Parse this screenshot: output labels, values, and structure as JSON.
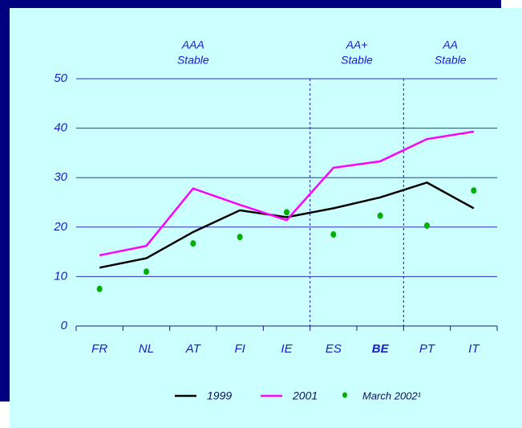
{
  "chart_data": {
    "type": "line",
    "categories": [
      "FR",
      "NL",
      "AT",
      "FI",
      "IE",
      "ES",
      "BE",
      "PT",
      "IT"
    ],
    "bold_categories": [
      "BE"
    ],
    "rating_groups": [
      {
        "rating": "AAA",
        "outlook": "Stable",
        "first": "FR",
        "last": "IE"
      },
      {
        "rating": "AA+",
        "outlook": "Stable",
        "first": "ES",
        "last": "BE"
      },
      {
        "rating": "AA",
        "outlook": "Stable",
        "first": "PT",
        "last": "IT"
      }
    ],
    "series": [
      {
        "name": "1999",
        "color": "#000000",
        "style": "line",
        "values": [
          11.8,
          13.7,
          19,
          23.4,
          22,
          23.8,
          26,
          29,
          23.8
        ]
      },
      {
        "name": "2001",
        "color": "#ff00ff",
        "style": "line",
        "values": [
          14.3,
          16.2,
          27.8,
          24.5,
          21.4,
          32,
          33.3,
          37.8,
          39.3
        ]
      },
      {
        "name": "March 2002¹",
        "color": "#00b000",
        "style": "markers",
        "values": [
          7.5,
          11,
          16.7,
          18,
          23,
          18.5,
          22.3,
          20.3,
          27.4
        ]
      }
    ],
    "ylim": [
      0,
      50
    ],
    "yticks": [
      0,
      10,
      20,
      30,
      40,
      50
    ],
    "grid": true
  }
}
